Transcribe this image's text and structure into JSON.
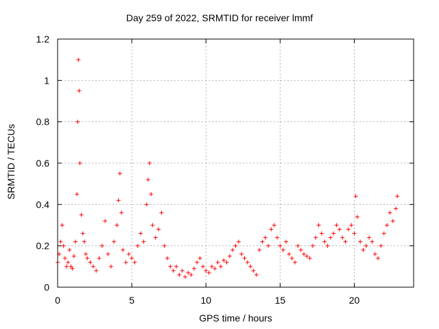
{
  "chart_data": {
    "type": "scatter",
    "title": "Day 259 of 2022, SRMTID for receiver lmmf",
    "xlabel": "GPS time / hours",
    "ylabel": "SRMTID / TECUs",
    "xlim": [
      0,
      24
    ],
    "ylim": [
      0,
      1.2
    ],
    "xticks": [
      0,
      5,
      10,
      15,
      20
    ],
    "yticks": [
      0,
      0.2,
      0.4,
      0.6,
      0.8,
      1,
      1.2
    ],
    "xtick_labels": [
      "0",
      "5",
      "10",
      "15",
      "20"
    ],
    "ytick_labels": [
      "0",
      "0.2",
      "0.4",
      "0.6",
      "0.8",
      "1",
      "1.2"
    ],
    "grid": true,
    "marker": "+",
    "color": "#ff0000",
    "series": [
      {
        "name": "SRMTID",
        "x": [
          0.0,
          0.1,
          0.2,
          0.3,
          0.4,
          0.5,
          0.6,
          0.7,
          0.8,
          0.9,
          1.0,
          1.1,
          1.2,
          1.3,
          1.35,
          1.4,
          1.45,
          1.5,
          1.6,
          1.7,
          1.8,
          1.9,
          2.0,
          2.2,
          2.4,
          2.6,
          2.8,
          3.0,
          3.2,
          3.4,
          3.6,
          3.8,
          4.0,
          4.1,
          4.2,
          4.3,
          4.4,
          4.6,
          4.8,
          5.0,
          5.2,
          5.4,
          5.6,
          5.8,
          6.0,
          6.1,
          6.2,
          6.3,
          6.4,
          6.6,
          6.8,
          7.0,
          7.2,
          7.4,
          7.6,
          7.8,
          8.0,
          8.2,
          8.4,
          8.6,
          8.8,
          9.0,
          9.2,
          9.4,
          9.6,
          9.8,
          10.0,
          10.2,
          10.4,
          10.6,
          10.8,
          11.0,
          11.2,
          11.4,
          11.6,
          11.8,
          12.0,
          12.2,
          12.4,
          12.6,
          12.8,
          13.0,
          13.2,
          13.4,
          13.6,
          13.8,
          14.0,
          14.2,
          14.4,
          14.6,
          14.8,
          15.0,
          15.2,
          15.4,
          15.6,
          15.8,
          16.0,
          16.2,
          16.4,
          16.6,
          16.8,
          17.0,
          17.2,
          17.4,
          17.6,
          17.8,
          18.0,
          18.2,
          18.4,
          18.6,
          18.8,
          19.0,
          19.2,
          19.4,
          19.6,
          19.8,
          20.0,
          20.1,
          20.2,
          20.4,
          20.6,
          20.8,
          21.0,
          21.2,
          21.4,
          21.6,
          21.8,
          22.0,
          22.2,
          22.4,
          22.6,
          22.8,
          22.9
        ],
        "y": [
          0.12,
          0.16,
          0.22,
          0.3,
          0.2,
          0.14,
          0.1,
          0.12,
          0.18,
          0.1,
          0.09,
          0.15,
          0.22,
          0.45,
          0.8,
          1.1,
          0.95,
          0.6,
          0.35,
          0.26,
          0.22,
          0.16,
          0.14,
          0.12,
          0.1,
          0.08,
          0.14,
          0.2,
          0.32,
          0.16,
          0.1,
          0.22,
          0.3,
          0.42,
          0.55,
          0.36,
          0.18,
          0.12,
          0.16,
          0.14,
          0.12,
          0.2,
          0.26,
          0.22,
          0.4,
          0.52,
          0.6,
          0.45,
          0.3,
          0.24,
          0.28,
          0.36,
          0.2,
          0.14,
          0.1,
          0.08,
          0.1,
          0.06,
          0.08,
          0.05,
          0.07,
          0.06,
          0.09,
          0.12,
          0.14,
          0.1,
          0.08,
          0.07,
          0.1,
          0.09,
          0.12,
          0.1,
          0.13,
          0.12,
          0.15,
          0.18,
          0.2,
          0.22,
          0.16,
          0.14,
          0.12,
          0.1,
          0.08,
          0.06,
          0.18,
          0.22,
          0.24,
          0.2,
          0.28,
          0.3,
          0.24,
          0.2,
          0.18,
          0.22,
          0.16,
          0.14,
          0.12,
          0.2,
          0.18,
          0.16,
          0.15,
          0.14,
          0.2,
          0.24,
          0.3,
          0.26,
          0.22,
          0.2,
          0.24,
          0.26,
          0.3,
          0.28,
          0.24,
          0.22,
          0.28,
          0.3,
          0.26,
          0.44,
          0.34,
          0.22,
          0.18,
          0.2,
          0.24,
          0.22,
          0.16,
          0.14,
          0.2,
          0.26,
          0.3,
          0.36,
          0.32,
          0.38,
          0.44
        ]
      }
    ]
  }
}
